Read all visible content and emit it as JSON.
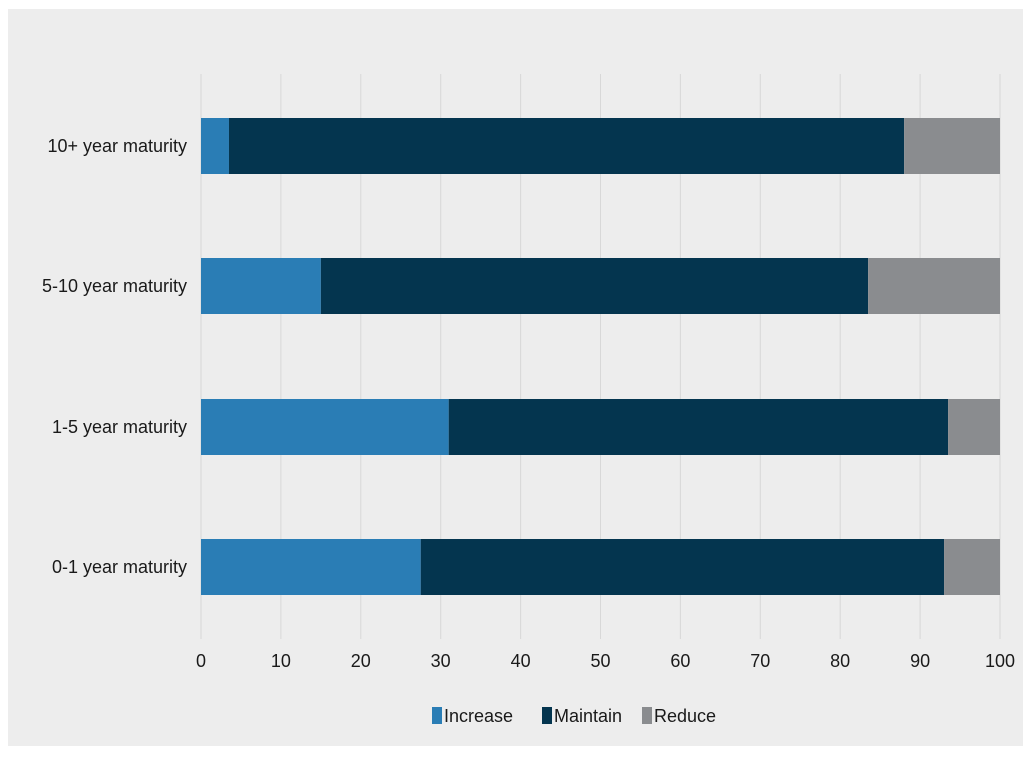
{
  "chart_data": {
    "type": "bar",
    "orientation": "horizontal",
    "stacked": true,
    "title": "",
    "xlabel": "",
    "ylabel": "",
    "categories": [
      "10+ year maturity",
      "5-10 year maturity",
      "1-5 year maturity",
      "0-1 year maturity"
    ],
    "series": [
      {
        "name": "Increase",
        "color": "#2a7db5",
        "values": [
          3.5,
          15,
          31,
          27.5
        ]
      },
      {
        "name": "Maintain",
        "color": "#04354f",
        "values": [
          84.5,
          68.5,
          62.5,
          65.5
        ]
      },
      {
        "name": "Reduce",
        "color": "#8a8c8f",
        "values": [
          12,
          16.5,
          6.5,
          7
        ]
      }
    ],
    "xlim": [
      0,
      100
    ],
    "xticks": [
      "0",
      "10",
      "20",
      "30",
      "40",
      "50",
      "60",
      "70",
      "80",
      "90",
      "100"
    ],
    "grid": "vertical",
    "legend": "bottom-center"
  }
}
